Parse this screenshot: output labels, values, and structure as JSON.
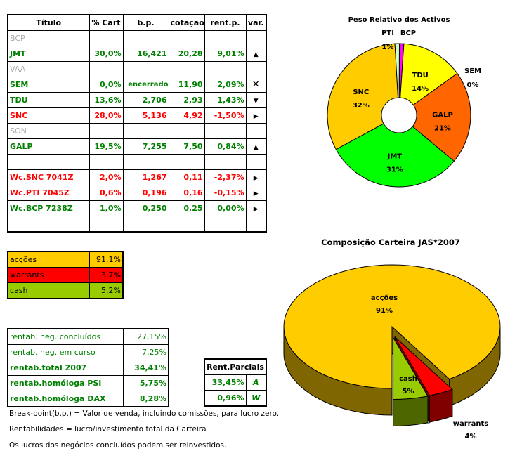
{
  "portfolio_table": {
    "headers": [
      "Título",
      "% Cart",
      "b.p.",
      "cotação",
      "rent.p.",
      "var."
    ],
    "rows": [
      {
        "titulo": "BCP",
        "cart": "",
        "bp": "",
        "cot": "",
        "rent": "",
        "var": "",
        "style": "gray"
      },
      {
        "titulo": "JMT",
        "cart": "30,0%",
        "bp": "16,421",
        "cot": "20,28",
        "rent": "9,01%",
        "var": "up-triangle-icon",
        "style": "g"
      },
      {
        "titulo": "VAA",
        "cart": "",
        "bp": "",
        "cot": "",
        "rent": "",
        "var": "",
        "style": "gray"
      },
      {
        "titulo": "SEM",
        "cart": "0,0%",
        "bp": "encerrado",
        "cot": "11,90",
        "rent": "2,09%",
        "var": "x-icon",
        "style": "g"
      },
      {
        "titulo": "TDU",
        "cart": "13,6%",
        "bp": "2,706",
        "cot": "2,93",
        "rent": "1,43%",
        "var": "down-triangle-icon",
        "style": "g"
      },
      {
        "titulo": "SNC",
        "cart": "28,0%",
        "bp": "5,136",
        "cot": "4,92",
        "rent": "-1,50%",
        "var": "right-triangle-icon",
        "style": "r"
      },
      {
        "titulo": "SON",
        "cart": "",
        "bp": "",
        "cot": "",
        "rent": "",
        "var": "",
        "style": "gray"
      },
      {
        "titulo": "GALP",
        "cart": "19,5%",
        "bp": "7,255",
        "cot": "7,50",
        "rent": "0,84%",
        "var": "up-triangle-icon",
        "style": "g"
      },
      {
        "titulo": "",
        "cart": "",
        "bp": "",
        "cot": "",
        "rent": "",
        "var": "",
        "style": "g"
      },
      {
        "titulo": "Wc.SNC 7041Z",
        "cart": "2,0%",
        "bp": "1,267",
        "cot": "0,11",
        "rent": "-2,37%",
        "var": "right-triangle-icon",
        "style": "r"
      },
      {
        "titulo": "Wc.PTI 7045Z",
        "cart": "0,6%",
        "bp": "0,196",
        "cot": "0,16",
        "rent": "-0,15%",
        "var": "right-triangle-icon",
        "style": "r"
      },
      {
        "titulo": "Wc.BCP 7238Z",
        "cart": "1,0%",
        "bp": "0,250",
        "cot": "0,25",
        "rent": "0,00%",
        "var": "right-triangle-icon",
        "style": "g"
      },
      {
        "titulo": "",
        "cart": "",
        "bp": "",
        "cot": "",
        "rent": "",
        "var": "",
        "style": "g"
      }
    ]
  },
  "allocation_table": [
    {
      "label": "acções",
      "value": "91,1%",
      "color": "#FFCC00"
    },
    {
      "label": "warrants",
      "value": "3,7%",
      "color": "#FF0000"
    },
    {
      "label": "cash",
      "value": "5,2%",
      "color": "#99CC00"
    }
  ],
  "returns_table": [
    {
      "label": "rentab. neg. concluídos",
      "value": "27,15%",
      "bold": false
    },
    {
      "label": "rentab. neg. em curso",
      "value": "7,25%",
      "bold": false
    },
    {
      "label": "rentab.total 2007",
      "value": "34,41%",
      "bold": true
    },
    {
      "label": "rentab.homóloga PSI",
      "value": "5,75%",
      "bold": true
    },
    {
      "label": "rentab.homóloga DAX",
      "value": "8,28%",
      "bold": true
    }
  ],
  "partial_returns": {
    "header": "Rent.Parciais",
    "rows": [
      {
        "value": "33,45%",
        "code": "A"
      },
      {
        "value": "0,96%",
        "code": "W"
      }
    ]
  },
  "notes": [
    "Break-point(b.p.) = Valor de venda, incluindo comissões, para lucro zero.",
    "Rentabilidades = lucro/investimento total da Carteira",
    "Os lucros dos negócios concluídos podem ser reinvestidos."
  ],
  "chart_data": [
    {
      "type": "pie",
      "variant": "donut",
      "title": "Peso Relativo dos Activos",
      "slices": [
        {
          "name": "BCP",
          "value": 1,
          "label": "1%",
          "color": "#FF00FF"
        },
        {
          "name": "TDU",
          "value": 14,
          "label": "14%",
          "color": "#FFFF00"
        },
        {
          "name": "SEM",
          "value": 0,
          "label": "0%",
          "color": "#FFFFFF"
        },
        {
          "name": "GALP",
          "value": 21,
          "label": "21%",
          "color": "#FF6600"
        },
        {
          "name": "JMT",
          "value": 31,
          "label": "31%",
          "color": "#00FF00"
        },
        {
          "name": "SNC",
          "value": 32,
          "label": "32%",
          "color": "#FFCC00"
        },
        {
          "name": "PTI",
          "value": 1,
          "label": "1%",
          "color": "#CCFFCC"
        }
      ]
    },
    {
      "type": "pie",
      "variant": "3d-exploded",
      "title": "Composição Carteira JAS*2007",
      "slices": [
        {
          "name": "acções",
          "value": 91.1,
          "label": "91%",
          "color": "#FFCC00",
          "side": "#806600",
          "exploded": false
        },
        {
          "name": "warrants",
          "value": 3.7,
          "label": "4%",
          "color": "#FF0000",
          "side": "#800000",
          "exploded": true
        },
        {
          "name": "cash",
          "value": 5.2,
          "label": "5%",
          "color": "#99CC00",
          "side": "#4D6600",
          "exploded": true
        }
      ]
    }
  ]
}
